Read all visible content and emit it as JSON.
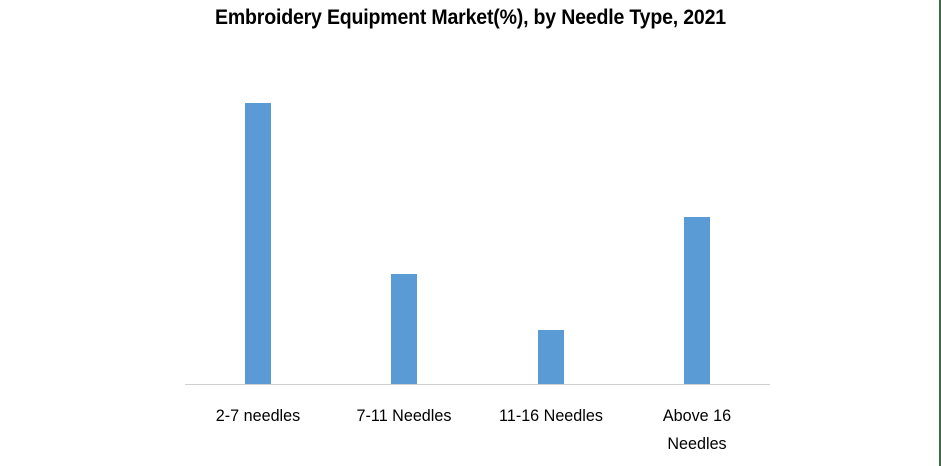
{
  "chart_data": {
    "type": "bar",
    "title": "Embroidery Equipment Market(%), by Needle Type, 2021",
    "categories": [
      "2-7 needles",
      "7-11 Needles",
      "11-16 Needles",
      "Above 16 Needles"
    ],
    "category_lines": [
      [
        "2-7 needles"
      ],
      [
        "7-11 Needles"
      ],
      [
        "11-16 Needles"
      ],
      [
        "Above 16",
        "Needles"
      ]
    ],
    "values": [
      45.7,
      18.0,
      8.9,
      27.3
    ],
    "xlabel": "",
    "ylabel": "",
    "ylim": [
      0,
      56
    ],
    "grid": false,
    "legend": null,
    "y_axis_visible": false,
    "series_color": "#5b9bd5"
  },
  "colors": {
    "bar": "#5b9bd5",
    "axis": "#d0d0d0",
    "frame_right": "#3d6b47"
  }
}
